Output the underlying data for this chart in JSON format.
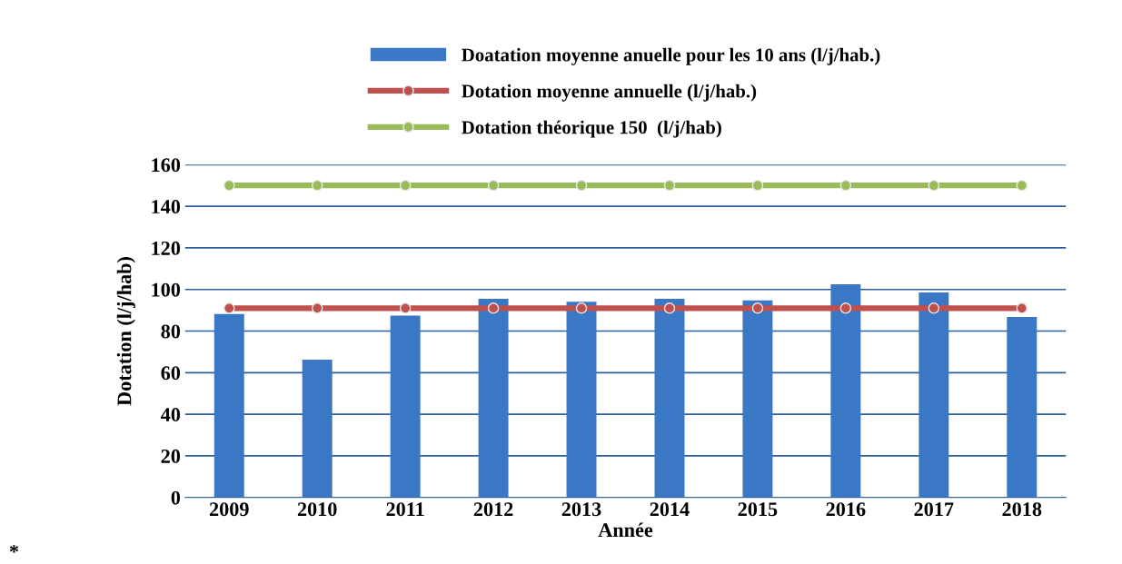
{
  "chart_data": {
    "type": "bar",
    "xlabel": "Année",
    "ylabel": "Dotation (l/j/hab)",
    "categories": [
      "2009",
      "2010",
      "2011",
      "2012",
      "2013",
      "2014",
      "2015",
      "2016",
      "2017",
      "2018"
    ],
    "series": [
      {
        "name": "Doatation moyenne anuelle pour les 10 ans (l/j/hab.)",
        "color": "#3a78c6",
        "values": [
          88.2,
          66.3,
          87.4,
          95.5,
          94.1,
          95.5,
          94.7,
          102.5,
          98.6,
          86.8
        ]
      },
      {
        "name": "Dotation moyenne annuelle (l/j/hab.)",
        "type": "line",
        "color": "#c0504d",
        "marker": "circle",
        "values": [
          91,
          91,
          91,
          91,
          91,
          91,
          91,
          91,
          91,
          91
        ]
      },
      {
        "name": "Dotation théorique 150  (l/j/hab)",
        "type": "line",
        "color": "#9bbb59",
        "marker": "circle",
        "values": [
          150,
          150,
          150,
          150,
          150,
          150,
          150,
          150,
          150,
          150
        ]
      }
    ],
    "ylim": [
      0,
      160
    ],
    "yticks": [
      0,
      20,
      40,
      60,
      80,
      100,
      120,
      140,
      160
    ],
    "grid": "y",
    "legend": "top",
    "annotations": [
      "*"
    ]
  }
}
